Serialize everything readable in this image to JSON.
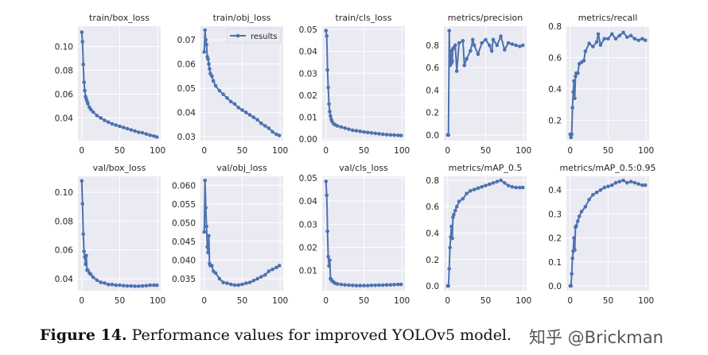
{
  "chart_data": [
    {
      "type": "line",
      "title": "train/box_loss",
      "ylim": [
        0.021,
        0.117
      ],
      "xlim": [
        -5,
        104
      ],
      "yticks": [
        0.04,
        0.06,
        0.08,
        0.1
      ],
      "ytick_labels": [
        "0.04",
        "0.06",
        "0.08",
        "0.10"
      ],
      "xticks": [
        0,
        50,
        100
      ],
      "xtick_labels": [
        "0",
        "50",
        "100"
      ],
      "x": [
        0,
        1,
        2,
        3,
        4,
        5,
        6,
        7,
        8,
        10,
        12,
        15,
        20,
        25,
        30,
        35,
        40,
        45,
        50,
        55,
        60,
        65,
        70,
        75,
        80,
        85,
        90,
        95,
        99
      ],
      "values": [
        0.112,
        0.104,
        0.085,
        0.07,
        0.063,
        0.058,
        0.056,
        0.054,
        0.052,
        0.049,
        0.047,
        0.045,
        0.042,
        0.04,
        0.038,
        0.0365,
        0.035,
        0.034,
        0.033,
        0.032,
        0.031,
        0.03,
        0.029,
        0.028,
        0.0275,
        0.0265,
        0.0255,
        0.0248,
        0.024
      ]
    },
    {
      "type": "line",
      "title": "train/obj_loss",
      "ylim": [
        0.0284,
        0.0756
      ],
      "xlim": [
        -5,
        104
      ],
      "yticks": [
        0.03,
        0.04,
        0.05,
        0.06,
        0.07
      ],
      "ytick_labels": [
        "0.03",
        "0.04",
        "0.05",
        "0.06",
        "0.07"
      ],
      "xticks": [
        0,
        50,
        100
      ],
      "xtick_labels": [
        "0",
        "50",
        "100"
      ],
      "legend": {
        "label": "results",
        "placement": "upper right"
      },
      "x": [
        0,
        1,
        2,
        3,
        4,
        5,
        6,
        7,
        8,
        10,
        12,
        15,
        20,
        25,
        30,
        35,
        40,
        45,
        50,
        55,
        60,
        65,
        70,
        75,
        80,
        85,
        90,
        95,
        99
      ],
      "values": [
        0.065,
        0.074,
        0.07,
        0.068,
        0.063,
        0.062,
        0.06,
        0.058,
        0.056,
        0.055,
        0.053,
        0.051,
        0.049,
        0.0475,
        0.046,
        0.0445,
        0.0435,
        0.042,
        0.041,
        0.04,
        0.039,
        0.038,
        0.037,
        0.0355,
        0.0345,
        0.0335,
        0.032,
        0.031,
        0.0305
      ]
    },
    {
      "type": "line",
      "title": "train/cls_loss",
      "ylim": [
        -0.0007,
        0.0515
      ],
      "xlim": [
        -5,
        104
      ],
      "yticks": [
        0.0,
        0.01,
        0.02,
        0.03,
        0.04,
        0.05
      ],
      "ytick_labels": [
        "0.00",
        "0.01",
        "0.02",
        "0.03",
        "0.04",
        "0.05"
      ],
      "xticks": [
        0,
        50,
        100
      ],
      "xtick_labels": [
        "0",
        "50",
        "100"
      ],
      "x": [
        0,
        1,
        2,
        3,
        4,
        5,
        6,
        7,
        8,
        10,
        12,
        15,
        20,
        25,
        30,
        35,
        40,
        45,
        50,
        55,
        60,
        65,
        70,
        75,
        80,
        85,
        90,
        95,
        99
      ],
      "values": [
        0.0495,
        0.047,
        0.0315,
        0.0235,
        0.016,
        0.0125,
        0.0105,
        0.009,
        0.008,
        0.007,
        0.0065,
        0.006,
        0.0055,
        0.005,
        0.0045,
        0.004,
        0.0038,
        0.0035,
        0.0032,
        0.003,
        0.0028,
        0.0026,
        0.0024,
        0.0022,
        0.002,
        0.0019,
        0.0018,
        0.0017,
        0.0016
      ]
    },
    {
      "type": "line",
      "title": "metrics/precision",
      "ylim": [
        -0.05,
        0.97
      ],
      "xlim": [
        -5,
        104
      ],
      "yticks": [
        0.0,
        0.2,
        0.4,
        0.6,
        0.8
      ],
      "ytick_labels": [
        "0.0",
        "0.2",
        "0.4",
        "0.6",
        "0.8"
      ],
      "xticks": [
        0,
        50,
        100
      ],
      "xtick_labels": [
        "0",
        "50",
        "100"
      ],
      "x": [
        0,
        1,
        2,
        3,
        4,
        5,
        6,
        7,
        8,
        10,
        12,
        15,
        20,
        22,
        25,
        30,
        33,
        35,
        40,
        45,
        50,
        55,
        58,
        60,
        65,
        70,
        75,
        80,
        85,
        90,
        95,
        99
      ],
      "values": [
        0.0,
        0.0,
        0.93,
        0.62,
        0.75,
        0.64,
        0.66,
        0.77,
        0.78,
        0.8,
        0.57,
        0.82,
        0.84,
        0.62,
        0.68,
        0.75,
        0.85,
        0.8,
        0.72,
        0.82,
        0.85,
        0.8,
        0.75,
        0.85,
        0.8,
        0.88,
        0.76,
        0.82,
        0.81,
        0.8,
        0.79,
        0.8
      ]
    },
    {
      "type": "line",
      "title": "metrics/recall",
      "ylim": [
        0.07,
        0.8
      ],
      "xlim": [
        -5,
        104
      ],
      "yticks": [
        0.2,
        0.4,
        0.6,
        0.8
      ],
      "ytick_labels": [
        "0.2",
        "0.4",
        "0.6",
        "0.8"
      ],
      "xticks": [
        0,
        50,
        100
      ],
      "xtick_labels": [
        "0",
        "50",
        "100"
      ],
      "x": [
        0,
        1,
        2,
        3,
        4,
        5,
        6,
        7,
        8,
        10,
        12,
        15,
        18,
        20,
        25,
        30,
        35,
        37,
        40,
        45,
        50,
        55,
        60,
        65,
        70,
        75,
        80,
        85,
        90,
        95,
        99
      ],
      "values": [
        0.11,
        0.09,
        0.11,
        0.28,
        0.38,
        0.45,
        0.34,
        0.48,
        0.5,
        0.5,
        0.56,
        0.57,
        0.58,
        0.64,
        0.69,
        0.67,
        0.7,
        0.75,
        0.68,
        0.72,
        0.72,
        0.75,
        0.72,
        0.74,
        0.76,
        0.73,
        0.74,
        0.72,
        0.71,
        0.72,
        0.71
      ]
    },
    {
      "type": "line",
      "title": "val/box_loss",
      "ylim": [
        0.0317,
        0.1111
      ],
      "xlim": [
        -5,
        104
      ],
      "yticks": [
        0.04,
        0.06,
        0.08,
        0.1
      ],
      "ytick_labels": [
        "0.04",
        "0.06",
        "0.08",
        "0.10"
      ],
      "xticks": [
        0,
        50,
        100
      ],
      "xtick_labels": [
        "0",
        "50",
        "100"
      ],
      "x": [
        0,
        1,
        2,
        3,
        4,
        5,
        6,
        7,
        8,
        10,
        12,
        15,
        20,
        25,
        30,
        35,
        40,
        45,
        50,
        55,
        60,
        65,
        70,
        75,
        80,
        85,
        90,
        95,
        99
      ],
      "values": [
        0.108,
        0.092,
        0.071,
        0.059,
        0.055,
        0.05,
        0.056,
        0.046,
        0.046,
        0.044,
        0.043,
        0.041,
        0.039,
        0.0375,
        0.037,
        0.036,
        0.036,
        0.0355,
        0.0355,
        0.0352,
        0.035,
        0.035,
        0.0348,
        0.0348,
        0.035,
        0.0352,
        0.0355,
        0.0355,
        0.0355
      ]
    },
    {
      "type": "line",
      "title": "val/obj_loss",
      "ylim": [
        0.0318,
        0.0624
      ],
      "xlim": [
        -5,
        104
      ],
      "yticks": [
        0.035,
        0.04,
        0.045,
        0.05,
        0.055,
        0.06
      ],
      "ytick_labels": [
        "0.035",
        "0.040",
        "0.045",
        "0.050",
        "0.055",
        "0.060"
      ],
      "xticks": [
        0,
        50,
        100
      ],
      "xtick_labels": [
        "0",
        "50",
        "100"
      ],
      "x": [
        0,
        1,
        2,
        3,
        4,
        5,
        6,
        7,
        8,
        10,
        12,
        15,
        20,
        25,
        30,
        35,
        40,
        45,
        50,
        55,
        60,
        65,
        70,
        75,
        80,
        85,
        90,
        95,
        99
      ],
      "values": [
        0.0475,
        0.0613,
        0.054,
        0.049,
        0.0435,
        0.042,
        0.0465,
        0.039,
        0.0385,
        0.0385,
        0.037,
        0.0365,
        0.035,
        0.034,
        0.0338,
        0.0335,
        0.0333,
        0.0333,
        0.0335,
        0.0338,
        0.034,
        0.0345,
        0.035,
        0.0355,
        0.036,
        0.037,
        0.0375,
        0.038,
        0.0385
      ]
    },
    {
      "type": "line",
      "title": "val/cls_loss",
      "ylim": [
        0.0013,
        0.0507
      ],
      "xlim": [
        -5,
        104
      ],
      "yticks": [
        0.01,
        0.02,
        0.03,
        0.04,
        0.05
      ],
      "ytick_labels": [
        "0.01",
        "0.02",
        "0.03",
        "0.04",
        "0.05"
      ],
      "xticks": [
        0,
        50,
        100
      ],
      "xtick_labels": [
        "0",
        "50",
        "100"
      ],
      "x": [
        0,
        1,
        2,
        3,
        4,
        5,
        6,
        7,
        8,
        10,
        12,
        15,
        20,
        25,
        30,
        35,
        40,
        45,
        50,
        55,
        60,
        65,
        70,
        75,
        80,
        85,
        90,
        95,
        99
      ],
      "values": [
        0.0485,
        0.0425,
        0.027,
        0.016,
        0.012,
        0.0145,
        0.0065,
        0.006,
        0.0055,
        0.005,
        0.0045,
        0.0042,
        0.004,
        0.0038,
        0.0037,
        0.0036,
        0.0035,
        0.0035,
        0.0035,
        0.0035,
        0.0036,
        0.0036,
        0.0037,
        0.0037,
        0.0038,
        0.0038,
        0.0039,
        0.004,
        0.004
      ]
    },
    {
      "type": "line",
      "title": "metrics/mAP_0.5",
      "ylim": [
        -0.036,
        0.83
      ],
      "xlim": [
        -5,
        104
      ],
      "yticks": [
        0.0,
        0.2,
        0.4,
        0.6,
        0.8
      ],
      "ytick_labels": [
        "0.0",
        "0.2",
        "0.4",
        "0.6",
        "0.8"
      ],
      "xticks": [
        0,
        50,
        100
      ],
      "xtick_labels": [
        "0",
        "50",
        "100"
      ],
      "x": [
        0,
        1,
        2,
        3,
        4,
        5,
        6,
        7,
        8,
        10,
        12,
        15,
        20,
        25,
        30,
        35,
        40,
        45,
        50,
        55,
        60,
        65,
        70,
        75,
        80,
        85,
        90,
        95,
        99
      ],
      "values": [
        0.0,
        0.0,
        0.13,
        0.29,
        0.37,
        0.45,
        0.36,
        0.52,
        0.54,
        0.57,
        0.6,
        0.64,
        0.66,
        0.7,
        0.72,
        0.73,
        0.74,
        0.75,
        0.76,
        0.77,
        0.78,
        0.79,
        0.8,
        0.78,
        0.76,
        0.75,
        0.745,
        0.745,
        0.745
      ]
    },
    {
      "type": "line",
      "title": "metrics/mAP_0.5:0.95",
      "ylim": [
        -0.02,
        0.457
      ],
      "xlim": [
        -5,
        104
      ],
      "yticks": [
        0.0,
        0.1,
        0.2,
        0.3,
        0.4
      ],
      "ytick_labels": [
        "0.0",
        "0.1",
        "0.2",
        "0.3",
        "0.4"
      ],
      "xticks": [
        0,
        50,
        100
      ],
      "xtick_labels": [
        "0",
        "50",
        "100"
      ],
      "x": [
        0,
        1,
        2,
        3,
        4,
        5,
        6,
        7,
        8,
        10,
        12,
        15,
        20,
        25,
        30,
        35,
        40,
        45,
        50,
        55,
        60,
        65,
        70,
        75,
        80,
        85,
        90,
        95,
        99
      ],
      "values": [
        0.0,
        0.0,
        0.05,
        0.115,
        0.145,
        0.2,
        0.15,
        0.245,
        0.25,
        0.27,
        0.29,
        0.31,
        0.33,
        0.36,
        0.38,
        0.39,
        0.4,
        0.41,
        0.415,
        0.42,
        0.43,
        0.435,
        0.44,
        0.43,
        0.435,
        0.43,
        0.425,
        0.42,
        0.42
      ]
    }
  ],
  "colors": {
    "line": "#4c72b0",
    "plot_bg": "#eaeaf2",
    "grid": "#ffffff"
  },
  "caption": {
    "label": "Figure 14.",
    "text": " Performance values for improved YOLOv5 model."
  },
  "watermark": "知乎 @Brickman"
}
